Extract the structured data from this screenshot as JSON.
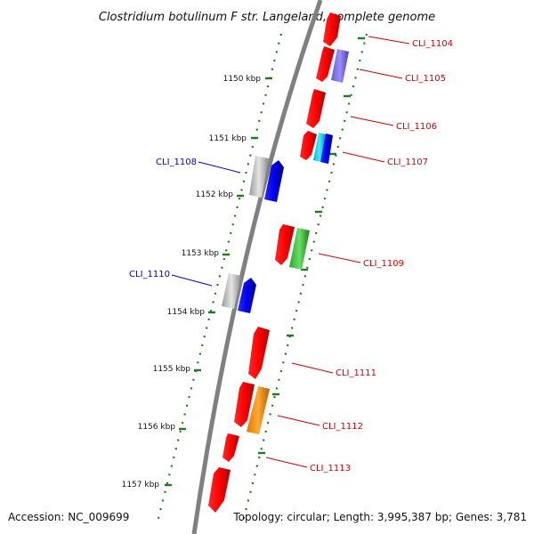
{
  "title": "Clostridium botulinum F str. Langeland, complete genome",
  "footer": {
    "accession": "Accession: NC_009699",
    "summary": "Topology: circular; Length: 3,995,387 bp; Genes: 3,781"
  },
  "colors": {
    "backbone": "#7f7f7f",
    "tick_dots": "#1f7a1f",
    "gene_red": "#ff0000",
    "gene_blue": "#0000ee",
    "gene_grey": "#bdbdbd",
    "gene_purple": "#7b68ee",
    "gene_cyan": "#00e5ff",
    "gene_green": "#33cc33",
    "gene_orange": "#ff9900",
    "label_red": "#cc0000",
    "label_blue": "#0000cc"
  },
  "ticks": [
    "1150 kbp",
    "1151 kbp",
    "1152 kbp",
    "1153 kbp",
    "1154 kbp",
    "1155 kbp",
    "1156 kbp",
    "1157 kbp"
  ],
  "gene_labels": [
    {
      "text": "CLI_1104",
      "color": "red"
    },
    {
      "text": "CLI_1105",
      "color": "red"
    },
    {
      "text": "CLI_1106",
      "color": "red"
    },
    {
      "text": "CLI_1107",
      "color": "red"
    },
    {
      "text": "CLI_1108",
      "color": "blue"
    },
    {
      "text": "CLI_1109",
      "color": "red"
    },
    {
      "text": "CLI_1110",
      "color": "blue"
    },
    {
      "text": "CLI_1111",
      "color": "red"
    },
    {
      "text": "CLI_1112",
      "color": "red"
    },
    {
      "text": "CLI_1113",
      "color": "red"
    }
  ]
}
